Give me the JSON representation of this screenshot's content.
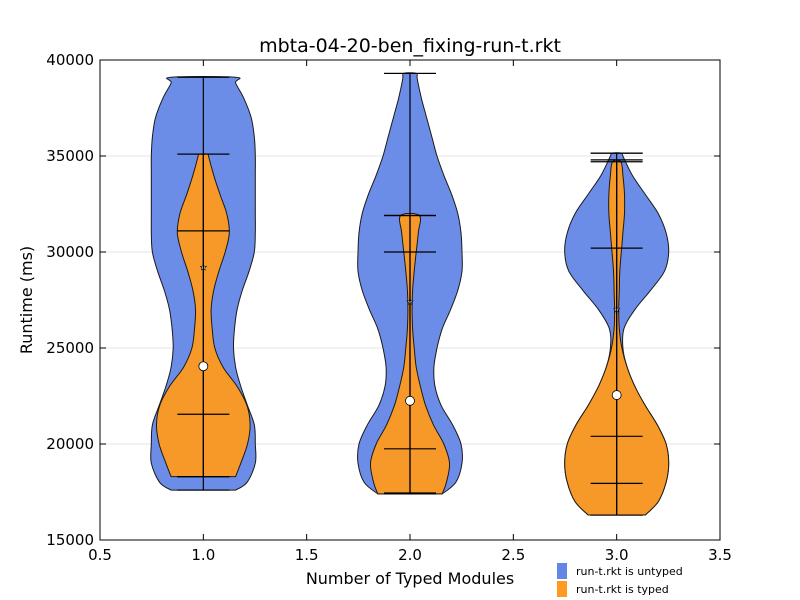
{
  "chart_data": {
    "type": "violin",
    "title": "mbta-04-20-ben_fixing-run-t.rkt",
    "xlabel": "Number of Typed Modules",
    "ylabel": "Runtime (ms)",
    "xlim": [
      0.5,
      3.5
    ],
    "ylim": [
      15000,
      40000
    ],
    "xticks": [
      "0.5",
      "1.0",
      "1.5",
      "2.0",
      "2.5",
      "3.0",
      "3.5"
    ],
    "yticks": [
      "15000",
      "20000",
      "25000",
      "30000",
      "35000",
      "40000"
    ],
    "grid": "horizontal",
    "legend_position": "bottom-right",
    "series": [
      {
        "name": "run-t.rkt is untyped",
        "color": "#6487e6",
        "violins": [
          {
            "x": 1.0,
            "min": 17600,
            "max": 39100,
            "mean": 29200,
            "profile": [
              [
                17600,
                0.62
              ],
              [
                18000,
                0.84
              ],
              [
                19000,
                1.0
              ],
              [
                20000,
                1.0
              ],
              [
                21000,
                0.98
              ],
              [
                22000,
                0.85
              ],
              [
                23000,
                0.72
              ],
              [
                24000,
                0.62
              ],
              [
                25000,
                0.58
              ],
              [
                26000,
                0.6
              ],
              [
                27000,
                0.65
              ],
              [
                28000,
                0.75
              ],
              [
                29000,
                0.88
              ],
              [
                30000,
                0.98
              ],
              [
                31000,
                1.0
              ],
              [
                32000,
                1.0
              ],
              [
                33000,
                1.0
              ],
              [
                34000,
                1.0
              ],
              [
                35000,
                1.0
              ],
              [
                36000,
                0.98
              ],
              [
                37000,
                0.92
              ],
              [
                38000,
                0.78
              ],
              [
                38800,
                0.62
              ],
              [
                39100,
                0.62
              ]
            ],
            "hlines": [
              35100,
              31100,
              21550,
              18300
            ]
          },
          {
            "x": 2.0,
            "min": 17400,
            "max": 39300,
            "mean": 27400,
            "profile": [
              [
                17400,
                0.62
              ],
              [
                18000,
                0.88
              ],
              [
                19000,
                1.0
              ],
              [
                20000,
                0.98
              ],
              [
                21000,
                0.82
              ],
              [
                22000,
                0.6
              ],
              [
                23000,
                0.48
              ],
              [
                24000,
                0.46
              ],
              [
                25000,
                0.52
              ],
              [
                26000,
                0.62
              ],
              [
                27000,
                0.78
              ],
              [
                28000,
                0.92
              ],
              [
                29000,
                1.0
              ],
              [
                30000,
                1.0
              ],
              [
                31000,
                0.98
              ],
              [
                32000,
                0.92
              ],
              [
                33000,
                0.8
              ],
              [
                34000,
                0.65
              ],
              [
                35000,
                0.52
              ],
              [
                36000,
                0.42
              ],
              [
                37000,
                0.32
              ],
              [
                38000,
                0.22
              ],
              [
                39000,
                0.14
              ],
              [
                39300,
                0.12
              ]
            ],
            "hlines": [
              39300,
              31900,
              30000,
              19750,
              17450
            ]
          },
          {
            "x": 3.0,
            "min": 16300,
            "max": 35150,
            "mean": 27000,
            "profile": [
              [
                16300,
                0.55
              ],
              [
                17000,
                0.8
              ],
              [
                18000,
                0.95
              ],
              [
                19000,
                1.0
              ],
              [
                20000,
                0.95
              ],
              [
                21000,
                0.78
              ],
              [
                22000,
                0.55
              ],
              [
                23000,
                0.35
              ],
              [
                24000,
                0.2
              ],
              [
                25000,
                0.12
              ],
              [
                26000,
                0.14
              ],
              [
                27000,
                0.35
              ],
              [
                28000,
                0.65
              ],
              [
                29000,
                0.92
              ],
              [
                30000,
                1.0
              ],
              [
                31000,
                0.95
              ],
              [
                32000,
                0.8
              ],
              [
                33000,
                0.55
              ],
              [
                34000,
                0.3
              ],
              [
                35000,
                0.12
              ],
              [
                35150,
                0.1
              ]
            ],
            "hlines": [
              35150,
              34800,
              30200,
              20400,
              17950
            ]
          }
        ]
      },
      {
        "name": "run-t.rkt is typed",
        "color": "#ff9a1e",
        "violins": [
          {
            "x": 1.0,
            "min": 18300,
            "max": 35100,
            "mean": 24050,
            "profile": [
              [
                18300,
                0.62
              ],
              [
                19000,
                0.72
              ],
              [
                20000,
                0.85
              ],
              [
                21000,
                0.9
              ],
              [
                22000,
                0.84
              ],
              [
                23000,
                0.65
              ],
              [
                24000,
                0.38
              ],
              [
                25000,
                0.22
              ],
              [
                26000,
                0.17
              ],
              [
                27000,
                0.15
              ],
              [
                28000,
                0.2
              ],
              [
                29000,
                0.3
              ],
              [
                30000,
                0.42
              ],
              [
                31000,
                0.5
              ],
              [
                32000,
                0.45
              ],
              [
                33000,
                0.32
              ],
              [
                34000,
                0.2
              ],
              [
                35000,
                0.1
              ],
              [
                35100,
                0.1
              ]
            ],
            "hlines": []
          },
          {
            "x": 2.0,
            "min": 17400,
            "max": 31900,
            "mean": 22250,
            "profile": [
              [
                17400,
                0.62
              ],
              [
                18000,
                0.7
              ],
              [
                19000,
                0.76
              ],
              [
                20000,
                0.65
              ],
              [
                21000,
                0.45
              ],
              [
                22000,
                0.3
              ],
              [
                23000,
                0.2
              ],
              [
                24000,
                0.12
              ],
              [
                25000,
                0.08
              ],
              [
                26000,
                0.05
              ],
              [
                27000,
                0.04
              ],
              [
                28000,
                0.05
              ],
              [
                29000,
                0.08
              ],
              [
                30000,
                0.12
              ],
              [
                31000,
                0.16
              ],
              [
                31900,
                0.18
              ]
            ],
            "hlines": []
          },
          {
            "x": 3.0,
            "min": 16300,
            "max": 34700,
            "mean": 22550,
            "profile": [
              [
                16300,
                0.55
              ],
              [
                17000,
                0.8
              ],
              [
                18000,
                0.95
              ],
              [
                19000,
                1.0
              ],
              [
                20000,
                0.95
              ],
              [
                21000,
                0.78
              ],
              [
                22000,
                0.55
              ],
              [
                23000,
                0.35
              ],
              [
                24000,
                0.2
              ],
              [
                25000,
                0.1
              ],
              [
                26000,
                0.05
              ],
              [
                27000,
                0.04
              ],
              [
                28000,
                0.05
              ],
              [
                29000,
                0.06
              ],
              [
                30000,
                0.09
              ],
              [
                31000,
                0.12
              ],
              [
                32000,
                0.15
              ],
              [
                33000,
                0.15
              ],
              [
                34000,
                0.12
              ],
              [
                34700,
                0.08
              ]
            ],
            "hlines": []
          }
        ]
      }
    ]
  }
}
